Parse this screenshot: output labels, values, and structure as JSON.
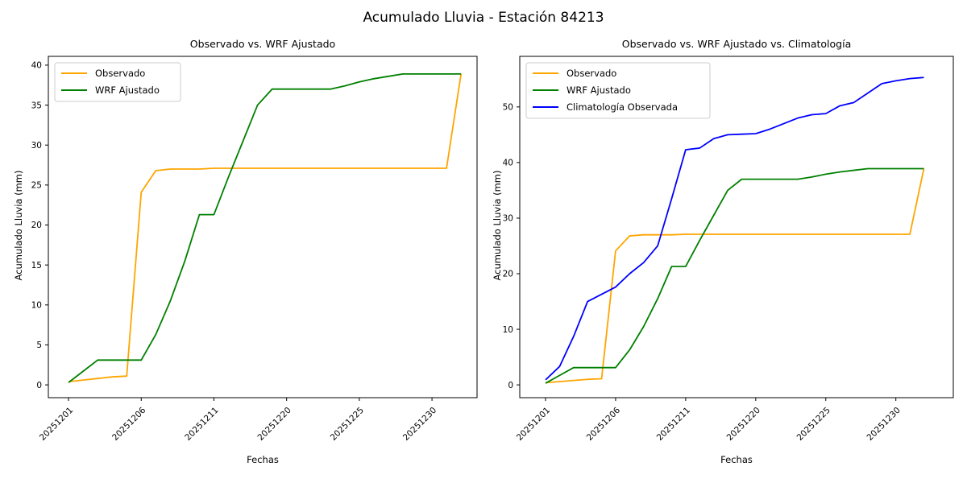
{
  "figure": {
    "title": "Acumulado Lluvia - Estación 84213",
    "background_color": "#ffffff",
    "text_color": "#000000",
    "spine_color": "#000000",
    "legend_border_color": "#cccccc"
  },
  "chart_data": [
    {
      "type": "line",
      "title": "Observado vs. WRF Ajustado",
      "xlabel": "Fechas",
      "ylabel": "Acumulado Lluvia (mm)",
      "grid": false,
      "legend_position": "upper left",
      "n_points": 28,
      "xtick_positions": [
        0,
        5,
        10,
        15,
        20,
        25
      ],
      "xtick_labels": [
        "20251201",
        "20251206",
        "20251211",
        "20251220",
        "20251225",
        "20251230"
      ],
      "xtick_rotation": 45,
      "yticks": [
        0,
        5,
        10,
        15,
        20,
        25,
        30,
        35,
        40
      ],
      "xlim": [
        -1.39,
        28.1
      ],
      "ylim": [
        -1.6,
        41.1
      ],
      "series": [
        {
          "name": "Observado",
          "color": "#FFA500",
          "values": [
            0.4,
            0.6,
            0.8,
            1.0,
            1.1,
            24.1,
            26.8,
            27.0,
            27.0,
            27.0,
            27.1,
            27.1,
            27.1,
            27.1,
            27.1,
            27.1,
            27.1,
            27.1,
            27.1,
            27.1,
            27.1,
            27.1,
            27.1,
            27.1,
            27.1,
            27.1,
            27.1,
            38.9
          ]
        },
        {
          "name": "WRF Ajustado",
          "color": "#008000",
          "values": [
            0.3,
            1.7,
            3.1,
            3.1,
            3.1,
            3.1,
            6.3,
            10.5,
            15.5,
            21.3,
            21.3,
            26.0,
            30.5,
            35.0,
            37.0,
            37.0,
            37.0,
            37.0,
            37.0,
            37.4,
            37.9,
            38.3,
            38.6,
            38.9,
            38.9,
            38.9,
            38.9,
            38.9
          ]
        }
      ]
    },
    {
      "type": "line",
      "title": "Observado vs. WRF Ajustado vs. Climatología",
      "xlabel": "Fechas",
      "ylabel": "Acumulado Lluvia (mm)",
      "grid": false,
      "legend_position": "upper left",
      "n_points": 28,
      "xtick_positions": [
        0,
        5,
        10,
        15,
        20,
        25
      ],
      "xtick_labels": [
        "20251201",
        "20251206",
        "20251211",
        "20251220",
        "20251225",
        "20251230"
      ],
      "xtick_rotation": 45,
      "yticks": [
        0,
        10,
        20,
        30,
        40,
        50
      ],
      "xlim": [
        -1.84,
        29.1
      ],
      "ylim": [
        -2.3,
        59.1
      ],
      "series": [
        {
          "name": "Observado",
          "color": "#FFA500",
          "values": [
            0.4,
            0.6,
            0.8,
            1.0,
            1.1,
            24.1,
            26.8,
            27.0,
            27.0,
            27.0,
            27.1,
            27.1,
            27.1,
            27.1,
            27.1,
            27.1,
            27.1,
            27.1,
            27.1,
            27.1,
            27.1,
            27.1,
            27.1,
            27.1,
            27.1,
            27.1,
            27.1,
            38.9
          ]
        },
        {
          "name": "WRF Ajustado",
          "color": "#008000",
          "values": [
            0.3,
            1.7,
            3.1,
            3.1,
            3.1,
            3.1,
            6.3,
            10.5,
            15.5,
            21.3,
            21.3,
            26.0,
            30.5,
            35.0,
            37.0,
            37.0,
            37.0,
            37.0,
            37.0,
            37.4,
            37.9,
            38.3,
            38.6,
            38.9,
            38.9,
            38.9,
            38.9,
            38.9
          ]
        },
        {
          "name": "Climatología Observada",
          "color": "#0000FF",
          "values": [
            0.9,
            3.3,
            8.7,
            15.0,
            16.3,
            17.6,
            20.0,
            22.0,
            25.0,
            33.5,
            42.3,
            42.6,
            44.3,
            45.0,
            45.1,
            45.2,
            46.0,
            47.0,
            48.0,
            48.6,
            48.8,
            50.2,
            50.8,
            52.5,
            54.2,
            54.7,
            55.1,
            55.3
          ]
        }
      ]
    }
  ]
}
